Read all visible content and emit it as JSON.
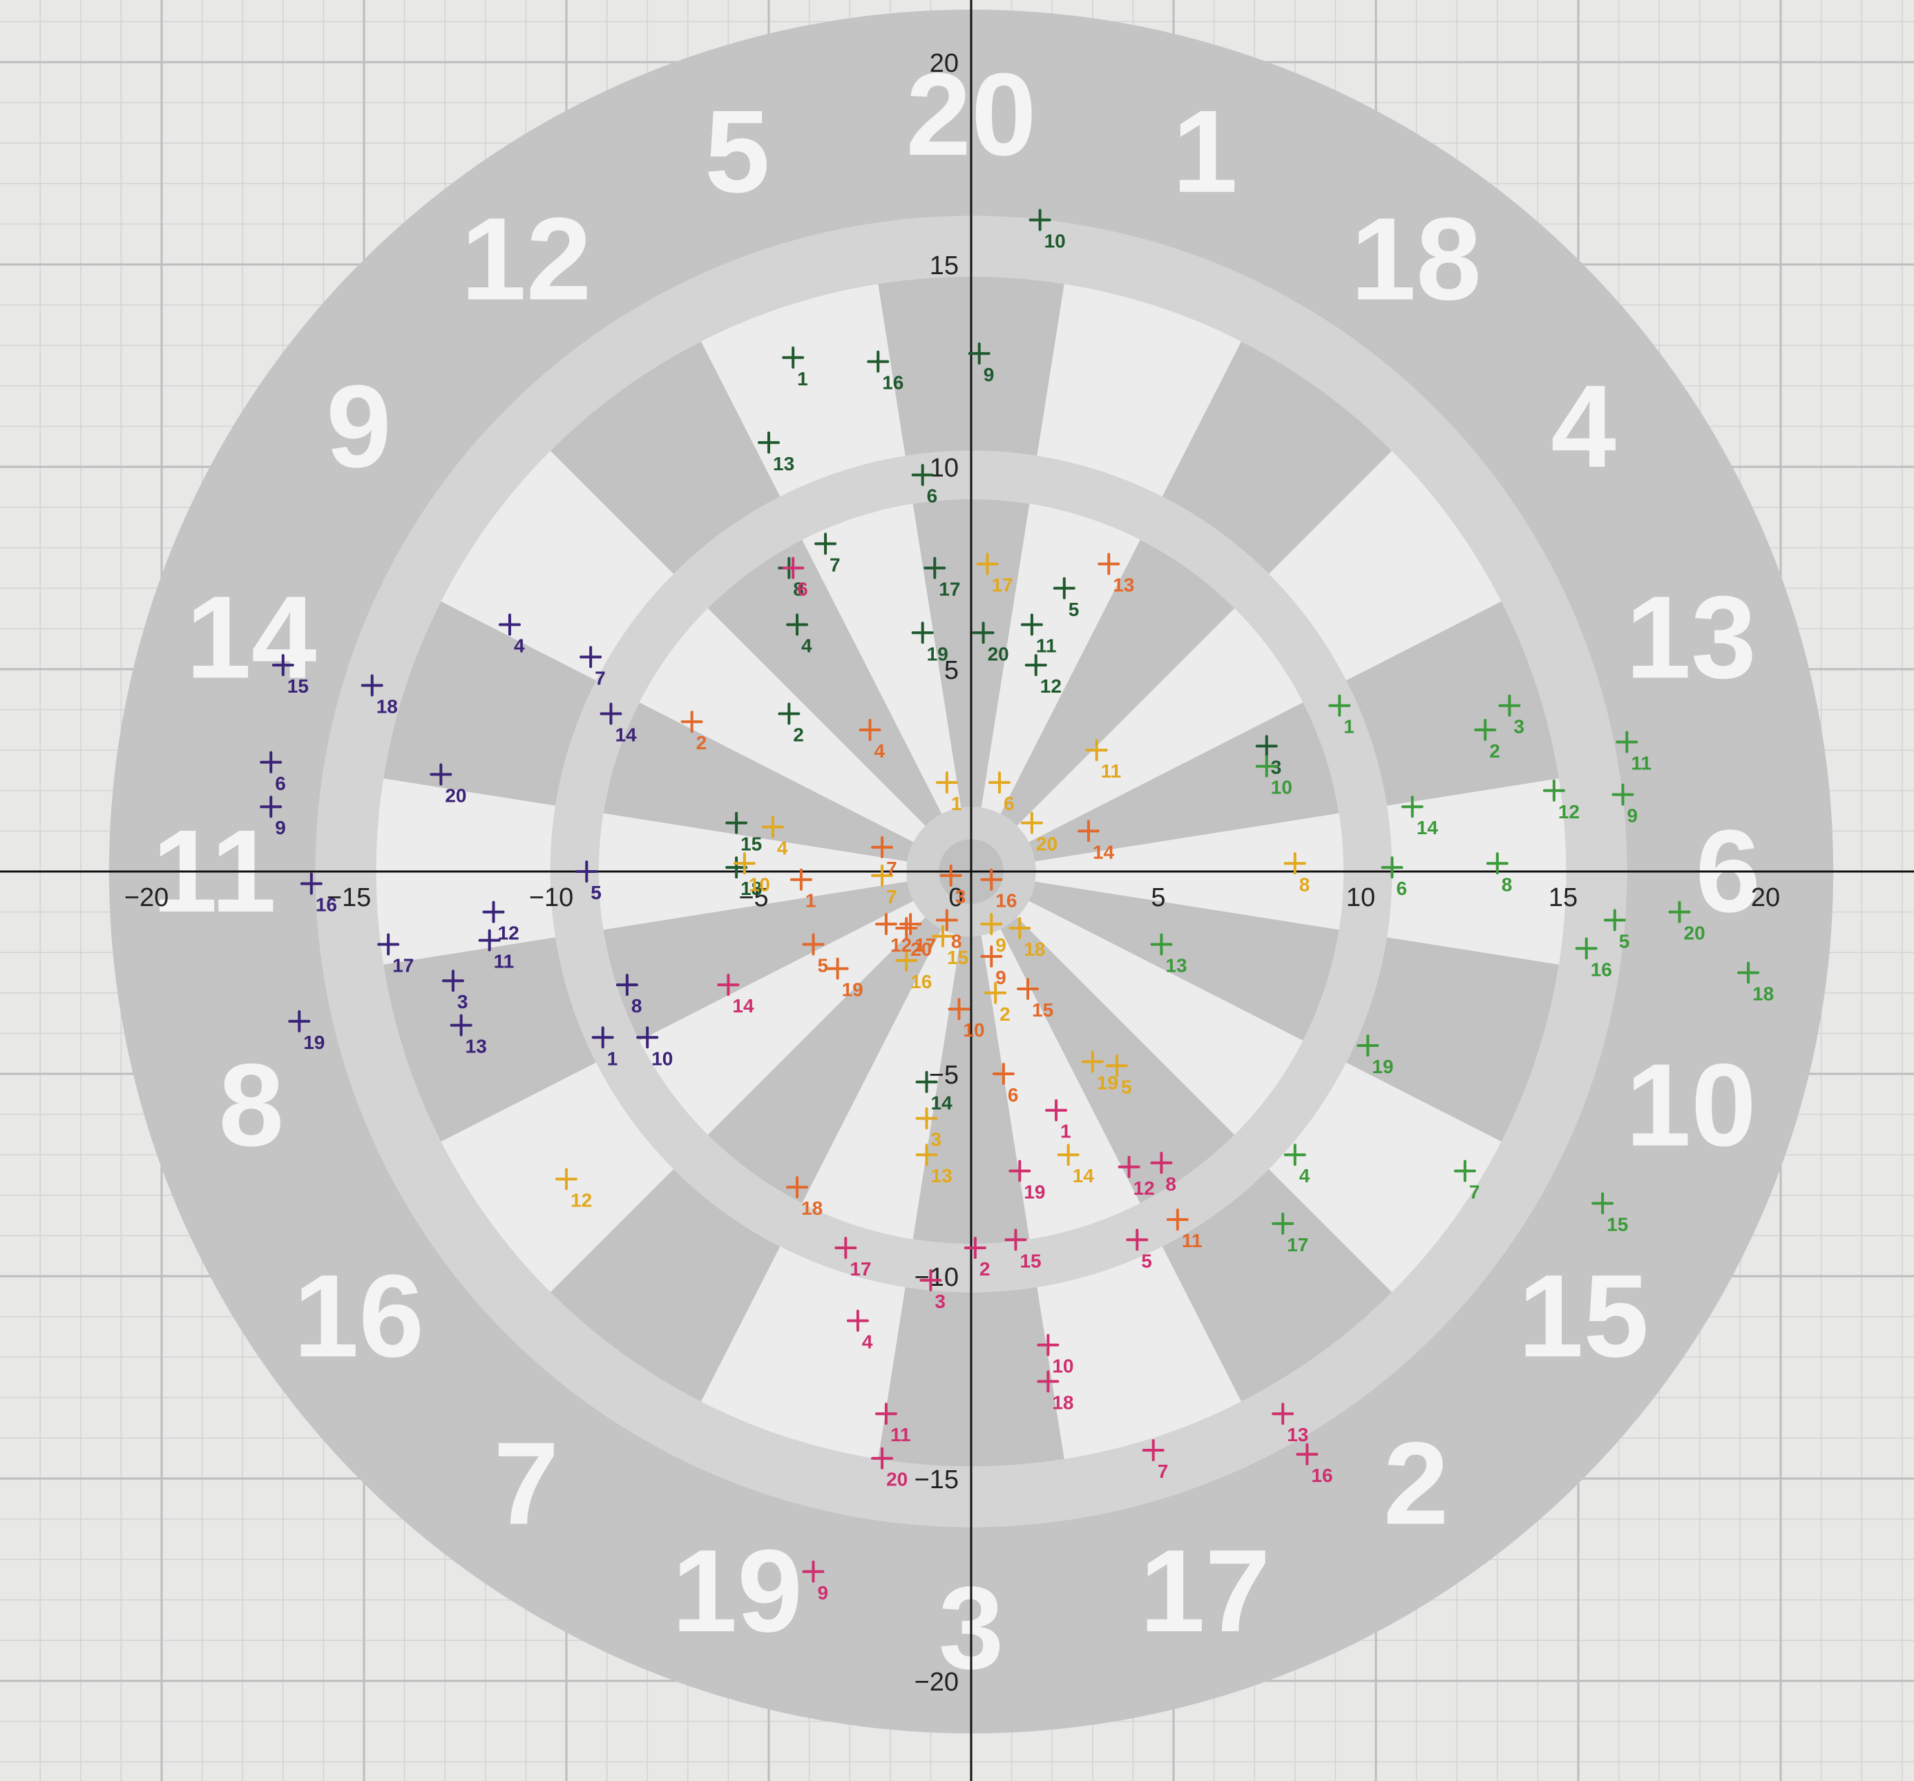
{
  "chart_data": {
    "type": "scatter",
    "title": "",
    "xlabel": "",
    "ylabel": "",
    "xlim": [
      -23.5,
      23.5
    ],
    "ylim": [
      -22,
      21.5
    ],
    "grid": true,
    "x_ticks": [
      -20,
      -15,
      -10,
      -5,
      0,
      5,
      10,
      15,
      20
    ],
    "x_tick_labels": [
      "−20",
      "−15",
      "−10",
      "−5",
      "0",
      "5",
      "10",
      "15",
      "20"
    ],
    "y_ticks": [
      -20,
      -15,
      -10,
      -5,
      5,
      10,
      15,
      20
    ],
    "y_tick_labels": [
      "−20",
      "−15",
      "−10",
      "−5",
      "5",
      "10",
      "15",
      "20"
    ],
    "dartboard_segments": [
      "20",
      "1",
      "18",
      "4",
      "13",
      "6",
      "10",
      "15",
      "2",
      "17",
      "3",
      "19",
      "7",
      "16",
      "8",
      "11",
      "14",
      "9",
      "12",
      "5"
    ],
    "series": [
      {
        "color": "#1f5a2e",
        "points": [
          {
            "x": -4.4,
            "y": 12.7,
            "label": "1"
          },
          {
            "x": -4.5,
            "y": 3.9,
            "label": "2"
          },
          {
            "x": 7.3,
            "y": 3.1,
            "label": "3"
          },
          {
            "x": -4.3,
            "y": 6.1,
            "label": "4"
          },
          {
            "x": 2.3,
            "y": 7.0,
            "label": "5"
          },
          {
            "x": -1.2,
            "y": 9.8,
            "label": "6"
          },
          {
            "x": -3.6,
            "y": 8.1,
            "label": "7"
          },
          {
            "x": -4.5,
            "y": 7.5,
            "label": "8"
          },
          {
            "x": 0.2,
            "y": 12.8,
            "label": "9"
          },
          {
            "x": 1.7,
            "y": 16.1,
            "label": "10"
          },
          {
            "x": 1.5,
            "y": 6.1,
            "label": "11"
          },
          {
            "x": 1.6,
            "y": 5.1,
            "label": "12"
          },
          {
            "x": -5.0,
            "y": 10.6,
            "label": "13"
          },
          {
            "x": -1.1,
            "y": -5.2,
            "label": "14"
          },
          {
            "x": -5.8,
            "y": 1.2,
            "label": "15"
          },
          {
            "x": -2.3,
            "y": 12.6,
            "label": "16"
          },
          {
            "x": -0.9,
            "y": 7.5,
            "label": "17"
          },
          {
            "x": -5.8,
            "y": 0.1,
            "label": "18"
          },
          {
            "x": -1.2,
            "y": 5.9,
            "label": "19"
          },
          {
            "x": 0.3,
            "y": 5.9,
            "label": "20"
          }
        ]
      },
      {
        "color": "#3b9a3a",
        "points": [
          {
            "x": 9.1,
            "y": 4.1,
            "label": "1"
          },
          {
            "x": 12.7,
            "y": 3.5,
            "label": "2"
          },
          {
            "x": 13.3,
            "y": 4.1,
            "label": "3"
          },
          {
            "x": 8.0,
            "y": -7.0,
            "label": "4"
          },
          {
            "x": 15.9,
            "y": -1.2,
            "label": "5"
          },
          {
            "x": 10.4,
            "y": 0.1,
            "label": "6"
          },
          {
            "x": 12.2,
            "y": -7.4,
            "label": "7"
          },
          {
            "x": 13.0,
            "y": 0.2,
            "label": "8"
          },
          {
            "x": 16.1,
            "y": 1.9,
            "label": "9"
          },
          {
            "x": 7.3,
            "y": 2.6,
            "label": "10"
          },
          {
            "x": 16.2,
            "y": 3.2,
            "label": "11"
          },
          {
            "x": 14.4,
            "y": 2.0,
            "label": "12"
          },
          {
            "x": 4.7,
            "y": -1.8,
            "label": "13"
          },
          {
            "x": 10.9,
            "y": 1.6,
            "label": "14"
          },
          {
            "x": 15.6,
            "y": -8.2,
            "label": "15"
          },
          {
            "x": 15.2,
            "y": -1.9,
            "label": "16"
          },
          {
            "x": 7.7,
            "y": -8.7,
            "label": "17"
          },
          {
            "x": 19.2,
            "y": -2.5,
            "label": "18"
          },
          {
            "x": 9.8,
            "y": -4.3,
            "label": "19"
          },
          {
            "x": 17.5,
            "y": -1.0,
            "label": "20"
          }
        ]
      },
      {
        "color": "#3a2378",
        "points": [
          {
            "x": -9.1,
            "y": -4.1,
            "label": "1"
          },
          {
            "x": -12.8,
            "y": -2.7,
            "label": "3"
          },
          {
            "x": -11.4,
            "y": 6.1,
            "label": "4"
          },
          {
            "x": -9.5,
            "y": 0.0,
            "label": "5"
          },
          {
            "x": -17.3,
            "y": 2.7,
            "label": "6"
          },
          {
            "x": -9.4,
            "y": 5.3,
            "label": "7"
          },
          {
            "x": -8.5,
            "y": -2.8,
            "label": "8"
          },
          {
            "x": -17.3,
            "y": 1.6,
            "label": "9"
          },
          {
            "x": -8.0,
            "y": -4.1,
            "label": "10"
          },
          {
            "x": -11.9,
            "y": -1.7,
            "label": "11"
          },
          {
            "x": -11.8,
            "y": -1.0,
            "label": "12"
          },
          {
            "x": -12.6,
            "y": -3.8,
            "label": "13"
          },
          {
            "x": -8.9,
            "y": 3.9,
            "label": "14"
          },
          {
            "x": -17.0,
            "y": 5.1,
            "label": "15"
          },
          {
            "x": -16.3,
            "y": -0.3,
            "label": "16"
          },
          {
            "x": -14.4,
            "y": -1.8,
            "label": "17"
          },
          {
            "x": -14.8,
            "y": 4.6,
            "label": "18"
          },
          {
            "x": -16.6,
            "y": -3.7,
            "label": "19"
          },
          {
            "x": -13.1,
            "y": 2.4,
            "label": "20"
          }
        ]
      },
      {
        "color": "#e2a81e",
        "points": [
          {
            "x": -0.6,
            "y": 2.2,
            "label": "1"
          },
          {
            "x": 0.6,
            "y": -3.0,
            "label": "2"
          },
          {
            "x": -1.1,
            "y": -6.1,
            "label": "3"
          },
          {
            "x": -4.9,
            "y": 1.1,
            "label": "4"
          },
          {
            "x": 3.6,
            "y": -4.8,
            "label": "5"
          },
          {
            "x": 0.7,
            "y": 2.2,
            "label": "6"
          },
          {
            "x": -2.2,
            "y": -0.1,
            "label": "7"
          },
          {
            "x": 8.0,
            "y": 0.2,
            "label": "8"
          },
          {
            "x": 0.5,
            "y": -1.3,
            "label": "9"
          },
          {
            "x": -5.6,
            "y": 0.2,
            "label": "10"
          },
          {
            "x": 3.1,
            "y": 3.0,
            "label": "11"
          },
          {
            "x": -10.0,
            "y": -7.6,
            "label": "12"
          },
          {
            "x": -1.1,
            "y": -7.0,
            "label": "13"
          },
          {
            "x": 2.4,
            "y": -7.0,
            "label": "14"
          },
          {
            "x": -0.7,
            "y": -1.6,
            "label": "15"
          },
          {
            "x": -1.6,
            "y": -2.2,
            "label": "16"
          },
          {
            "x": 0.4,
            "y": 7.6,
            "label": "17"
          },
          {
            "x": 1.2,
            "y": -1.4,
            "label": "18"
          },
          {
            "x": 3.0,
            "y": -4.7,
            "label": "19"
          },
          {
            "x": 1.5,
            "y": 1.2,
            "label": "20"
          }
        ]
      },
      {
        "color": "#e2692a",
        "points": [
          {
            "x": -4.2,
            "y": -0.2,
            "label": "1"
          },
          {
            "x": -6.9,
            "y": 3.7,
            "label": "2"
          },
          {
            "x": -0.5,
            "y": -0.1,
            "label": "3"
          },
          {
            "x": -2.5,
            "y": 3.5,
            "label": "4"
          },
          {
            "x": -3.9,
            "y": -1.8,
            "label": "5"
          },
          {
            "x": 0.8,
            "y": -5.0,
            "label": "6"
          },
          {
            "x": -2.2,
            "y": 0.6,
            "label": "7"
          },
          {
            "x": -0.6,
            "y": -1.2,
            "label": "8"
          },
          {
            "x": 0.5,
            "y": -2.1,
            "label": "9"
          },
          {
            "x": -0.3,
            "y": -3.4,
            "label": "10"
          },
          {
            "x": 5.1,
            "y": -8.6,
            "label": "11"
          },
          {
            "x": -2.1,
            "y": -1.3,
            "label": "12"
          },
          {
            "x": 3.4,
            "y": 7.6,
            "label": "13"
          },
          {
            "x": 2.9,
            "y": 1.0,
            "label": "14"
          },
          {
            "x": 1.4,
            "y": -2.9,
            "label": "15"
          },
          {
            "x": 0.5,
            "y": -0.2,
            "label": "16"
          },
          {
            "x": -1.5,
            "y": -1.3,
            "label": "17"
          },
          {
            "x": -4.3,
            "y": -7.8,
            "label": "18"
          },
          {
            "x": -3.3,
            "y": -2.4,
            "label": "19"
          },
          {
            "x": -1.6,
            "y": -1.4,
            "label": "20"
          }
        ]
      },
      {
        "color": "#cf2f6e",
        "points": [
          {
            "x": 2.1,
            "y": -5.9,
            "label": "1"
          },
          {
            "x": 0.1,
            "y": -9.3,
            "label": "2"
          },
          {
            "x": -1.0,
            "y": -10.1,
            "label": "3"
          },
          {
            "x": -2.8,
            "y": -11.1,
            "label": "4"
          },
          {
            "x": 4.1,
            "y": -9.1,
            "label": "5"
          },
          {
            "x": -4.4,
            "y": 7.5,
            "label": "6"
          },
          {
            "x": 4.5,
            "y": -14.3,
            "label": "7"
          },
          {
            "x": 4.7,
            "y": -7.2,
            "label": "8"
          },
          {
            "x": -3.9,
            "y": -17.3,
            "label": "9"
          },
          {
            "x": 1.9,
            "y": -11.7,
            "label": "10"
          },
          {
            "x": -2.1,
            "y": -13.4,
            "label": "11"
          },
          {
            "x": 3.9,
            "y": -7.3,
            "label": "12"
          },
          {
            "x": 7.7,
            "y": -13.4,
            "label": "13"
          },
          {
            "x": -6.0,
            "y": -2.8,
            "label": "14"
          },
          {
            "x": 1.1,
            "y": -9.1,
            "label": "15"
          },
          {
            "x": 8.3,
            "y": -14.4,
            "label": "16"
          },
          {
            "x": -3.1,
            "y": -9.3,
            "label": "17"
          },
          {
            "x": 1.9,
            "y": -12.6,
            "label": "18"
          },
          {
            "x": 1.2,
            "y": -7.4,
            "label": "19"
          },
          {
            "x": -2.2,
            "y": -14.5,
            "label": "20"
          }
        ]
      }
    ]
  }
}
